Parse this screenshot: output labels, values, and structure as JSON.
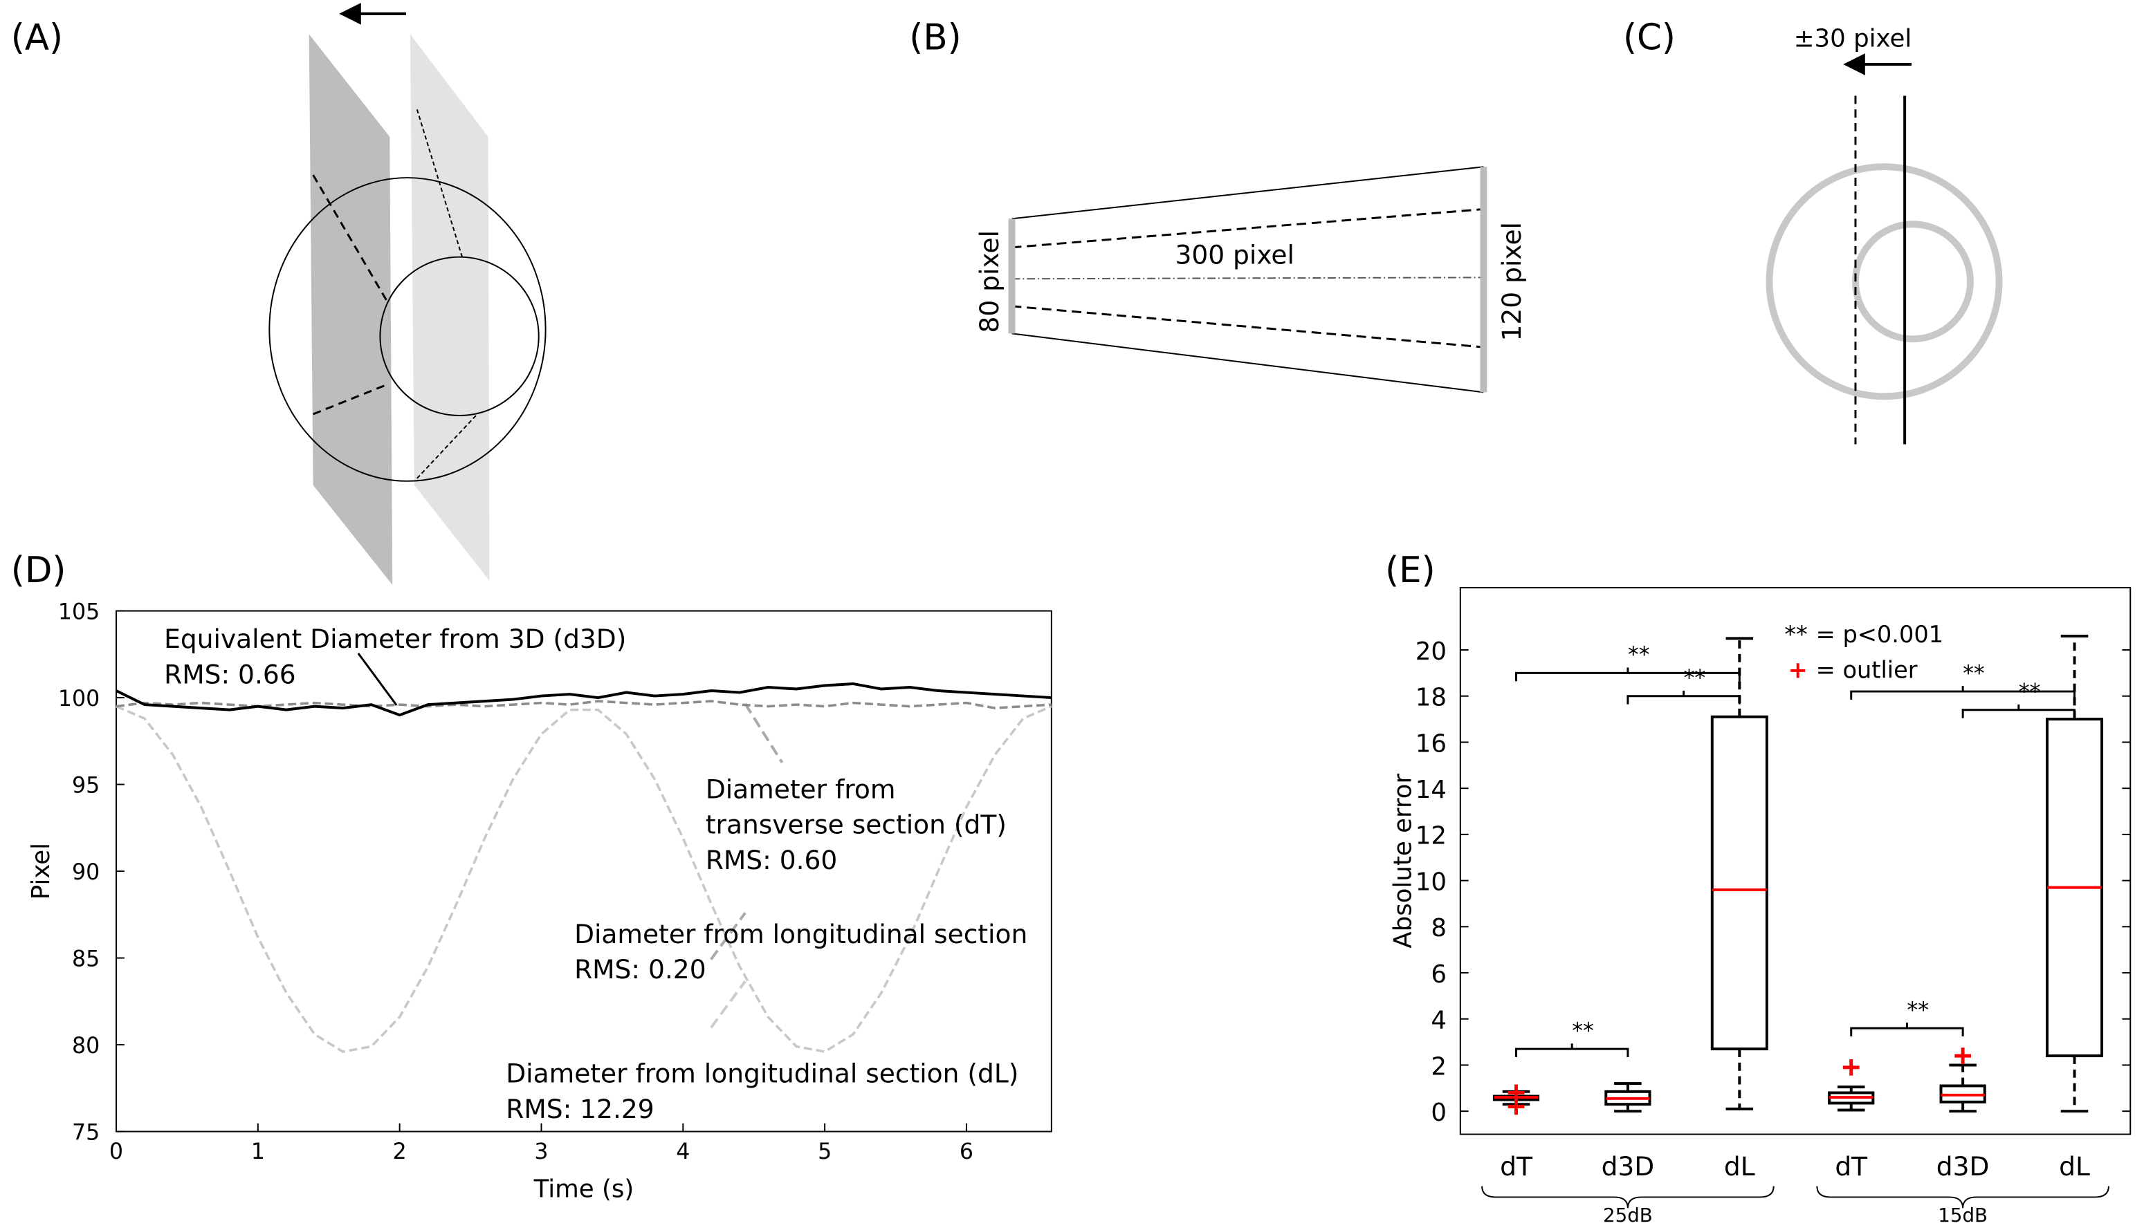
{
  "panels": {
    "labels": [
      "(A)",
      "(B)",
      "(C)",
      "(D)",
      "(E)"
    ],
    "B": {
      "left": "80 pixel",
      "length": "300 pixel",
      "right": "120 pixel"
    },
    "C": {
      "shift": "±30 pixel"
    }
  },
  "chart_data": [
    {
      "type": "line",
      "xlabel": "Time (s)",
      "ylabel": "Pixel",
      "x": [
        0,
        0.2,
        0.4,
        0.6,
        0.8,
        1.0,
        1.2,
        1.4,
        1.6,
        1.8,
        2.0,
        2.2,
        2.4,
        2.6,
        2.8,
        3.0,
        3.2,
        3.4,
        3.6,
        3.8,
        4.0,
        4.2,
        4.4,
        4.6,
        4.8,
        5.0,
        5.2,
        5.4,
        5.6,
        5.8,
        6.0,
        6.2,
        6.4,
        6.6
      ],
      "xlim": [
        0,
        6.6
      ],
      "xticks": [
        0,
        1,
        2,
        3,
        4,
        5,
        6
      ],
      "ylim": [
        75,
        105
      ],
      "yticks": [
        75,
        80,
        85,
        90,
        95,
        100,
        105
      ],
      "series": [
        {
          "color": "#c8c8c8",
          "style": "dashed",
          "values": [
            99.5,
            98.8,
            96.7,
            93.7,
            90.0,
            86.2,
            83.0,
            80.6,
            79.6,
            79.9,
            81.6,
            84.5,
            88.1,
            91.9,
            95.3,
            97.9,
            99.3,
            99.3,
            97.9,
            95.3,
            91.9,
            88.1,
            84.5,
            81.6,
            79.9,
            79.6,
            80.6,
            83.0,
            86.2,
            90.0,
            93.7,
            96.7,
            98.8,
            99.5
          ]
        },
        {
          "color": "#8c8c8c",
          "style": "dashed",
          "values": [
            99.5,
            99.7,
            99.6,
            99.7,
            99.6,
            99.5,
            99.6,
            99.7,
            99.6,
            99.5,
            99.6,
            99.5,
            99.6,
            99.5,
            99.6,
            99.7,
            99.6,
            99.8,
            99.7,
            99.6,
            99.7,
            99.8,
            99.6,
            99.5,
            99.6,
            99.5,
            99.7,
            99.6,
            99.5,
            99.6,
            99.7,
            99.4,
            99.5,
            99.6
          ]
        },
        {
          "color": "#000000",
          "style": "solid",
          "values": [
            100.4,
            99.6,
            99.5,
            99.4,
            99.3,
            99.5,
            99.3,
            99.5,
            99.4,
            99.6,
            99.0,
            99.6,
            99.7,
            99.8,
            99.9,
            100.1,
            100.2,
            100.0,
            100.3,
            100.1,
            100.2,
            100.4,
            100.3,
            100.6,
            100.5,
            100.7,
            100.8,
            100.5,
            100.6,
            100.4,
            100.3,
            100.2,
            100.1,
            100.0
          ]
        }
      ],
      "annotations": [
        {
          "lines": [
            "Equivalent Diameter from 3D (d3D)",
            "RMS: 0.66"
          ]
        },
        {
          "lines": [
            "Diameter from",
            "transverse section (dT)",
            "RMS: 0.60"
          ]
        },
        {
          "lines": [
            "Diameter from longitudinal section",
            "RMS: 0.20"
          ]
        },
        {
          "lines": [
            "Diameter from longitudinal section (dL)",
            "RMS: 12.29"
          ]
        }
      ]
    },
    {
      "type": "box",
      "ylabel": "Absolute error",
      "categories": [
        "dT",
        "d3D",
        "dL",
        "dT",
        "d3D",
        "dL"
      ],
      "groups": [
        "25dB",
        "15dB"
      ],
      "ylim": [
        -1,
        22.7
      ],
      "yticks": [
        0,
        2,
        4,
        6,
        8,
        10,
        12,
        14,
        16,
        18,
        20
      ],
      "box_color": "#000000",
      "median_color": "#ff0000",
      "outlier_color": "#ff0000",
      "boxes": [
        {
          "low": 0.3,
          "q1": 0.5,
          "median": 0.6,
          "q3": 0.65,
          "high": 0.85,
          "outliers": [
            0.2,
            0.8
          ]
        },
        {
          "low": 0,
          "q1": 0.3,
          "median": 0.55,
          "q3": 0.85,
          "high": 1.2,
          "outliers": []
        },
        {
          "low": 0.1,
          "q1": 2.7,
          "median": 9.6,
          "q3": 17.1,
          "high": 20.5,
          "outliers": []
        },
        {
          "low": 0.05,
          "q1": 0.35,
          "median": 0.6,
          "q3": 0.8,
          "high": 1.05,
          "outliers": [
            1.9
          ]
        },
        {
          "low": 0,
          "q1": 0.4,
          "median": 0.7,
          "q3": 1.1,
          "high": 2.0,
          "outliers": [
            2.4
          ]
        },
        {
          "low": 0,
          "q1": 2.4,
          "median": 9.7,
          "q3": 17.0,
          "high": 20.6,
          "outliers": []
        }
      ],
      "brackets": [
        {
          "from": 0,
          "to": 2,
          "y": 19,
          "label": "**"
        },
        {
          "from": 1,
          "to": 2,
          "y": 18,
          "label": "**"
        },
        {
          "from": 0,
          "to": 1,
          "y": 2.7,
          "label": "**"
        },
        {
          "from": 3,
          "to": 5,
          "y": 18.2,
          "label": "**"
        },
        {
          "from": 4,
          "to": 5,
          "y": 17.4,
          "label": "**"
        },
        {
          "from": 3,
          "to": 4,
          "y": 3.6,
          "label": "**"
        }
      ],
      "legend": [
        {
          "symbol": "**",
          "text": "= p<0.001"
        },
        {
          "symbol": "+",
          "text": "= outlier"
        }
      ]
    }
  ]
}
